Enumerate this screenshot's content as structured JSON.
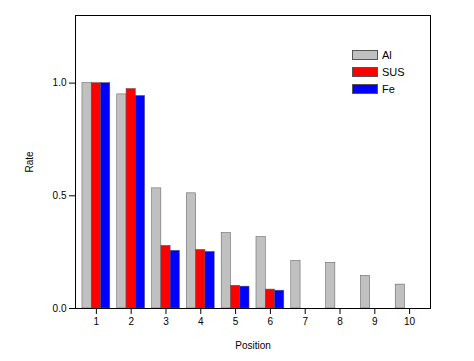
{
  "chart_data": {
    "type": "bar",
    "x_label": "Position",
    "y_label": "Rate",
    "categories": [
      "1",
      "2",
      "3",
      "4",
      "5",
      "6",
      "7",
      "8",
      "9",
      "10"
    ],
    "series": [
      {
        "name": "Al",
        "color": "#c0c0c0",
        "values": [
          1.0,
          0.95,
          0.533,
          0.511,
          0.335,
          0.317,
          0.211,
          0.203,
          0.145,
          0.106
        ]
      },
      {
        "name": "SUS",
        "color": "#ff0000",
        "values": [
          1.0,
          0.974,
          0.278,
          0.26,
          0.101,
          0.084,
          null,
          null,
          null,
          null
        ]
      },
      {
        "name": "Fe",
        "color": "#0000ff",
        "values": [
          1.0,
          0.943,
          0.256,
          0.251,
          0.097,
          0.079,
          null,
          null,
          null,
          null
        ]
      }
    ],
    "ylim": [
      0,
      1.3
    ],
    "yticks": [
      {
        "value": 0,
        "label": "0.0"
      },
      {
        "value": 0.5,
        "label": "0.5"
      },
      {
        "value": 1.0,
        "label": "1.0"
      }
    ],
    "legend": "top-right"
  }
}
